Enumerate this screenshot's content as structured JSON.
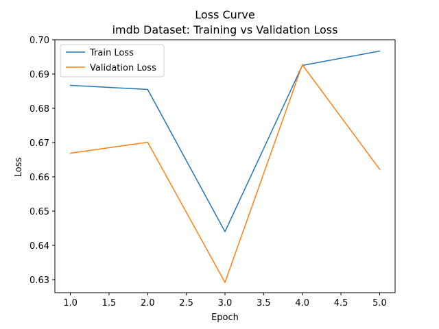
{
  "chart_data": {
    "type": "line",
    "title": "Loss Curve",
    "subtitle": "imdb Dataset: Training vs Validation Loss",
    "xlabel": "Epoch",
    "ylabel": "Loss",
    "xlim": [
      0.8,
      5.2
    ],
    "ylim": [
      0.6262,
      0.7
    ],
    "xticks": [
      1.0,
      1.5,
      2.0,
      2.5,
      3.0,
      3.5,
      4.0,
      4.5,
      5.0
    ],
    "xtick_labels": [
      "1.0",
      "1.5",
      "2.0",
      "2.5",
      "3.0",
      "3.5",
      "4.0",
      "4.5",
      "5.0"
    ],
    "yticks": [
      0.63,
      0.64,
      0.65,
      0.66,
      0.67,
      0.68,
      0.69,
      0.7
    ],
    "ytick_labels": [
      "0.63",
      "0.64",
      "0.65",
      "0.66",
      "0.67",
      "0.68",
      "0.69",
      "0.70"
    ],
    "grid": false,
    "legend_position": "upper-left",
    "series": [
      {
        "name": "Train Loss",
        "color": "#1f77b4",
        "x": [
          1,
          2,
          3,
          4,
          5
        ],
        "values": [
          0.6867,
          0.6855,
          0.644,
          0.6925,
          0.6967
        ]
      },
      {
        "name": "Validation Loss",
        "color": "#ff7f0e",
        "x": [
          1,
          2,
          3,
          4,
          5
        ],
        "values": [
          0.6669,
          0.6701,
          0.6292,
          0.6927,
          0.6622
        ]
      }
    ]
  }
}
